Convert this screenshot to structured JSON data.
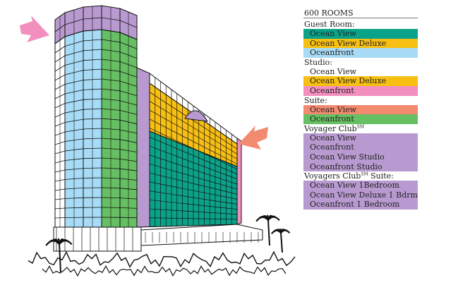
{
  "legend": {
    "title": "600 ROOMS",
    "groups": [
      {
        "label": "Guest Room:",
        "sup": "",
        "label_suffix": "",
        "items": [
          {
            "text": "Ocean View",
            "color": "#0aa38a"
          },
          {
            "text": "Ocean View Deluxe",
            "color": "#f7bf12"
          },
          {
            "text": "Oceanfront",
            "color": "#a8dcf6"
          }
        ]
      },
      {
        "label": "Studio:",
        "sup": "",
        "label_suffix": "",
        "items": [
          {
            "text": "Ocean View",
            "color": "#ffffff"
          },
          {
            "text": "Ocean View Deluxe",
            "color": "#f7bf12"
          },
          {
            "text": "Oceanfront",
            "color": "#f28fbe"
          }
        ]
      },
      {
        "label": "Suite:",
        "sup": "",
        "label_suffix": "",
        "items": [
          {
            "text": "Ocean View",
            "color": "#f28a70"
          },
          {
            "text": "Oceanfront",
            "color": "#66bf63"
          }
        ]
      },
      {
        "label": "Voyager Club",
        "sup": "SM",
        "label_suffix": "",
        "items": [
          {
            "text": "Ocean View",
            "color": "#b89ad0"
          },
          {
            "text": "Oceanfront",
            "color": "#b89ad0"
          },
          {
            "text": "Ocean View Studio",
            "color": "#b89ad0"
          },
          {
            "text": "Oceanfront Studio",
            "color": "#b89ad0"
          }
        ]
      },
      {
        "label": "Voyagers Club",
        "sup": "SM",
        "label_suffix": " Suite:",
        "items": [
          {
            "text": "Ocean View 1Bedroom",
            "color": "#b89ad0"
          },
          {
            "text": "Ocean View Deluxe 1 Bdrm",
            "color": "#b89ad0"
          },
          {
            "text": "Oceanfront 1 Bedroom",
            "color": "#b89ad0"
          }
        ]
      }
    ]
  },
  "building": {
    "colors": {
      "purple": "#b89ad0",
      "blue": "#a8dcf6",
      "green": "#66bf63",
      "yellow": "#f7bf12",
      "teal": "#0aa38a",
      "pink": "#f28fbe",
      "arrow_left": "#f28fbe",
      "arrow_right": "#f28a70"
    }
  }
}
